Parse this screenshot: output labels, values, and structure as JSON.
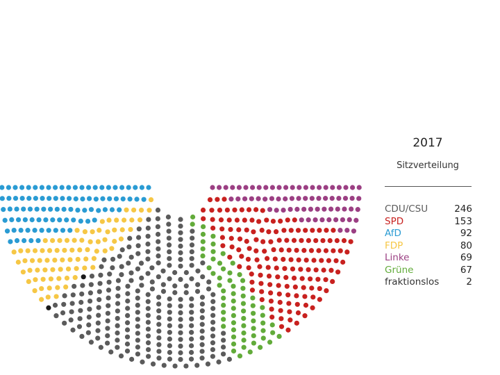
{
  "chart_data": {
    "type": "parliament",
    "title": "2017",
    "subtitle": "Sitzverteilung",
    "total_seats": 709,
    "series": [
      {
        "name": "AfD",
        "value": 92,
        "color": "#2a9bd3"
      },
      {
        "name": "FDP",
        "value": 80,
        "color": "#f6c745"
      },
      {
        "name": "fraktionslos",
        "value": 2,
        "color": "#1a1a1a"
      },
      {
        "name": "CDU/CSU",
        "value": 246,
        "color": "#5b5b5b"
      },
      {
        "name": "Grüne",
        "value": 67,
        "color": "#62ab3a"
      },
      {
        "name": "SPD",
        "value": 153,
        "color": "#c8211f"
      },
      {
        "name": "Linke",
        "value": 69,
        "color": "#9b3f83"
      }
    ],
    "legend": [
      {
        "name": "CDU/CSU",
        "value": 246,
        "color": "#5b5b5b"
      },
      {
        "name": "SPD",
        "value": 153,
        "color": "#c8211f"
      },
      {
        "name": "AfD",
        "value": 92,
        "color": "#2a9bd3"
      },
      {
        "name": "FDP",
        "value": 80,
        "color": "#f6c745"
      },
      {
        "name": "Linke",
        "value": 69,
        "color": "#9b3f83"
      },
      {
        "name": "Grüne",
        "value": 67,
        "color": "#62ab3a"
      },
      {
        "name": "fraktionslos",
        "value": 2,
        "color": "#333333"
      }
    ],
    "legend_placement": "right"
  }
}
